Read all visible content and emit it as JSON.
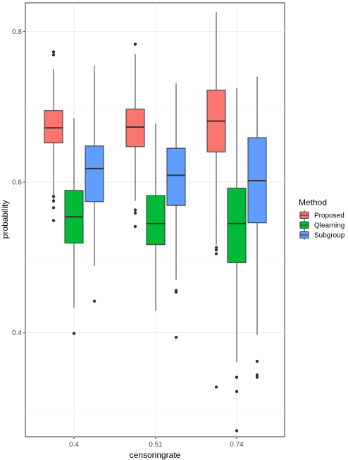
{
  "chart_data": {
    "type": "boxplot",
    "xlabel": "censoringrate",
    "ylabel": "probability",
    "categories": [
      "0.4",
      "0.51",
      "0.74"
    ],
    "y_ticks": [
      "0.4",
      "0.6",
      "0.8"
    ],
    "y_tick_values": [
      0.4,
      0.6,
      0.8
    ],
    "ylim": [
      0.262,
      0.838
    ],
    "grid": true,
    "legend": {
      "title": "Method",
      "position": "right"
    },
    "series": [
      {
        "name": "Proposed",
        "color": "#F8766D",
        "boxes": [
          {
            "category": "0.4",
            "min": 0.572,
            "q1": 0.652,
            "median": 0.672,
            "q3": 0.695,
            "max": 0.75,
            "outliers": [
              0.773,
              0.769,
              0.581,
              0.575,
              0.566,
              0.549
            ]
          },
          {
            "category": "0.51",
            "min": 0.575,
            "q1": 0.647,
            "median": 0.673,
            "q3": 0.697,
            "max": 0.77,
            "outliers": [
              0.783,
              0.563,
              0.559,
              0.541
            ]
          },
          {
            "category": "0.74",
            "min": 0.517,
            "q1": 0.64,
            "median": 0.681,
            "q3": 0.722,
            "max": 0.826,
            "outliers": [
              0.513,
              0.51,
              0.505,
              0.328
            ]
          }
        ]
      },
      {
        "name": "Qlearning",
        "color": "#00BA38",
        "boxes": [
          {
            "category": "0.4",
            "min": 0.433,
            "q1": 0.519,
            "median": 0.554,
            "q3": 0.589,
            "max": 0.685,
            "outliers": [
              0.399
            ]
          },
          {
            "category": "0.51",
            "min": 0.429,
            "q1": 0.517,
            "median": 0.545,
            "q3": 0.582,
            "max": 0.678,
            "outliers": []
          },
          {
            "category": "0.74",
            "min": 0.361,
            "q1": 0.493,
            "median": 0.545,
            "q3": 0.592,
            "max": 0.725,
            "outliers": [
              0.341,
              0.322,
              0.27
            ]
          }
        ]
      },
      {
        "name": "Subgroup",
        "color": "#619CFF",
        "boxes": [
          {
            "category": "0.4",
            "min": 0.489,
            "q1": 0.574,
            "median": 0.618,
            "q3": 0.648,
            "max": 0.755,
            "outliers": [
              0.442
            ]
          },
          {
            "category": "0.51",
            "min": 0.47,
            "q1": 0.569,
            "median": 0.609,
            "q3": 0.645,
            "max": 0.731,
            "outliers": [
              0.456,
              0.454,
              0.394
            ]
          },
          {
            "category": "0.74",
            "min": 0.397,
            "q1": 0.546,
            "median": 0.602,
            "q3": 0.659,
            "max": 0.74,
            "outliers": [
              0.362,
              0.344,
              0.341
            ]
          }
        ]
      }
    ]
  }
}
